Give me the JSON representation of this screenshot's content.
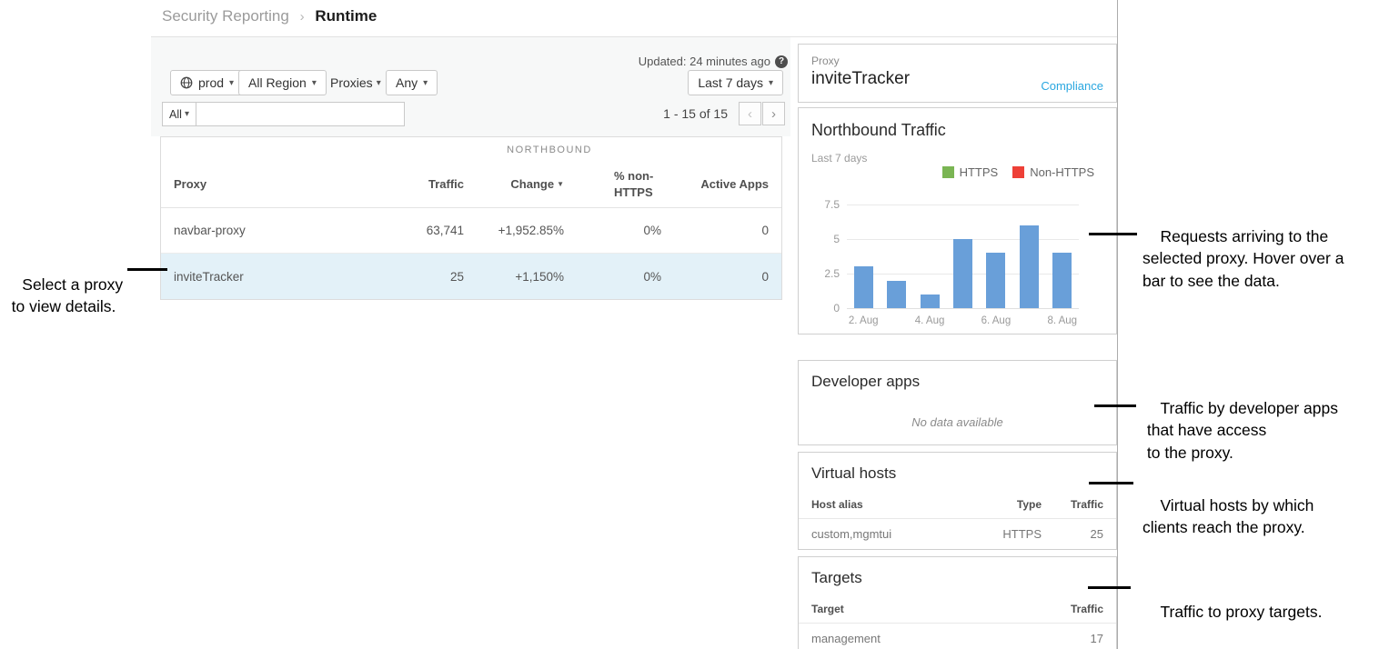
{
  "icons": {
    "caret": "▾",
    "breadcrumb_sep": "›",
    "chevron_left": "‹",
    "chevron_right": "›",
    "help": "?",
    "sort_desc": "▼"
  },
  "breadcrumb": {
    "parent": "Security Reporting",
    "current": "Runtime"
  },
  "toolbar": {
    "env_label": "prod",
    "region_label": "All Region",
    "proxies_label": "Proxies",
    "any_label": "Any",
    "updated_text": "Updated: 24 minutes ago",
    "time_range_label": "Last 7 days",
    "scope_label": "All",
    "search_value": "",
    "range_text": "1 - 15 of 15"
  },
  "table": {
    "group_header": "NORTHBOUND",
    "columns": {
      "proxy": "Proxy",
      "traffic": "Traffic",
      "change": "Change",
      "pct_non_https": "% non-HTTPS",
      "active_apps": "Active Apps"
    },
    "rows": [
      {
        "proxy": "navbar-proxy",
        "traffic": "63,741",
        "change": "+1,952.85%",
        "pct_non_https": "0%",
        "active_apps": "0",
        "selected": false
      },
      {
        "proxy": "inviteTracker",
        "traffic": "25",
        "change": "+1,150%",
        "pct_non_https": "0%",
        "active_apps": "0",
        "selected": true
      }
    ]
  },
  "detail": {
    "proxy_card": {
      "label": "Proxy",
      "name": "inviteTracker",
      "link": "Compliance"
    },
    "traffic_card": {
      "title": "Northbound Traffic",
      "subtitle": "Last 7 days"
    },
    "developer_apps_card": {
      "title": "Developer apps",
      "empty_text": "No data available"
    },
    "virtual_hosts_card": {
      "title": "Virtual hosts",
      "columns": {
        "alias": "Host alias",
        "type": "Type",
        "traffic": "Traffic"
      },
      "rows": [
        {
          "alias": "custom,mgmtui",
          "type": "HTTPS",
          "traffic": "25"
        }
      ]
    },
    "targets_card": {
      "title": "Targets",
      "columns": {
        "target": "Target",
        "traffic": "Traffic"
      },
      "rows": [
        {
          "target": "management",
          "traffic": "17"
        }
      ]
    }
  },
  "chart_data": {
    "type": "bar",
    "title": "Northbound Traffic",
    "subtitle": "Last 7 days",
    "x": [
      "2. Aug",
      "3. Aug",
      "4. Aug",
      "5. Aug",
      "6. Aug",
      "7. Aug",
      "8. Aug"
    ],
    "values": [
      3,
      2,
      1,
      5,
      4,
      6,
      4
    ],
    "x_tick_labels": [
      "2. Aug",
      "4. Aug",
      "6. Aug",
      "8. Aug"
    ],
    "x_tick_indices": [
      0,
      2,
      4,
      6
    ],
    "y_ticks": [
      0,
      2.5,
      5,
      7.5
    ],
    "ylim": [
      0,
      7.5
    ],
    "bar_color": "#699fd9",
    "grid": true,
    "legend": [
      "HTTPS",
      "Non-HTTPS"
    ],
    "legend_colors": [
      "#7ab553",
      "#ee4037"
    ],
    "legend_position": "top-right"
  },
  "annotations": {
    "left": {
      "lines": [
        "Select a proxy",
        "to view details."
      ]
    },
    "chart": {
      "lines": [
        "Requests arriving to the",
        "selected proxy. Hover over a",
        "bar to see the data."
      ]
    },
    "dev_apps": {
      "lines": [
        "Traffic by developer apps",
        " that have access",
        " to the proxy."
      ]
    },
    "vhosts": {
      "lines": [
        "Virtual hosts by which",
        "clients reach the proxy."
      ]
    },
    "targets": {
      "lines": [
        "Traffic to proxy targets."
      ]
    }
  }
}
